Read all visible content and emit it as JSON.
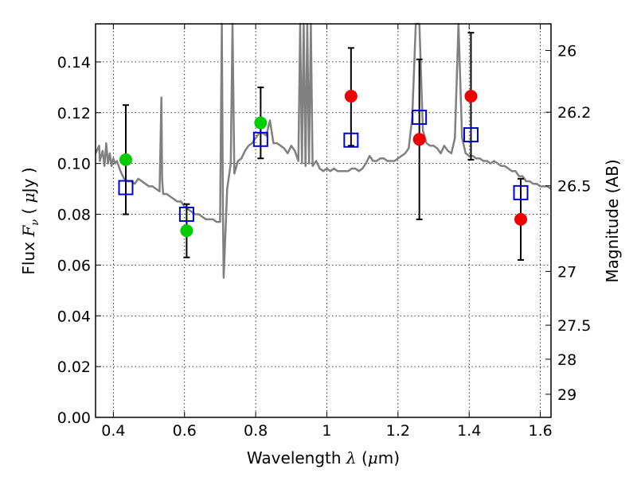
{
  "chart_data": {
    "type": "scatter",
    "xlabel": "Wavelength  λ (μm)",
    "ylabel": "Flux  F_ν  ( μJy )",
    "ylabel_right": "Magnitude (AB)",
    "xlim": [
      0.35,
      1.63
    ],
    "ylim": [
      0.0,
      0.155
    ],
    "grid": true,
    "x_ticks": [
      0.4,
      0.6,
      0.8,
      1.0,
      1.2,
      1.4,
      1.6
    ],
    "x_tick_labels": [
      "0.4",
      "0.6",
      "0.8",
      "1",
      "1.2",
      "1.4",
      "1.6"
    ],
    "y_ticks": [
      0.0,
      0.02,
      0.04,
      0.06,
      0.08,
      0.1,
      0.12,
      0.14
    ],
    "y_tick_labels": [
      "0.00",
      "0.02",
      "0.04",
      "0.06",
      "0.08",
      "0.10",
      "0.12",
      "0.14"
    ],
    "right_ticks": [
      {
        "label": "26",
        "flux": 0.1445
      },
      {
        "label": "26.2",
        "flux": 0.1202
      },
      {
        "label": "26.5",
        "flux": 0.0912
      },
      {
        "label": "27",
        "flux": 0.0575
      },
      {
        "label": "27.5",
        "flux": 0.0363
      },
      {
        "label": "28",
        "flux": 0.0229
      },
      {
        "label": "29",
        "flux": 0.0091
      }
    ],
    "series": [
      {
        "kind": "line",
        "color": "#808080",
        "x": [
          0.35,
          0.36,
          0.362,
          0.37,
          0.375,
          0.38,
          0.385,
          0.39,
          0.395,
          0.4,
          0.405,
          0.41,
          0.42,
          0.43,
          0.44,
          0.45,
          0.46,
          0.47,
          0.48,
          0.49,
          0.5,
          0.51,
          0.52,
          0.53,
          0.535,
          0.537,
          0.54,
          0.55,
          0.56,
          0.57,
          0.58,
          0.59,
          0.6,
          0.61,
          0.62,
          0.63,
          0.64,
          0.65,
          0.66,
          0.67,
          0.68,
          0.69,
          0.7,
          0.705,
          0.708,
          0.71,
          0.72,
          0.73,
          0.735,
          0.74,
          0.75,
          0.76,
          0.77,
          0.78,
          0.79,
          0.8,
          0.81,
          0.82,
          0.83,
          0.84,
          0.85,
          0.86,
          0.87,
          0.88,
          0.89,
          0.9,
          0.91,
          0.92,
          0.925,
          0.93,
          0.935,
          0.94,
          0.945,
          0.95,
          0.955,
          0.96,
          0.97,
          0.98,
          0.99,
          1.0,
          1.01,
          1.02,
          1.03,
          1.04,
          1.05,
          1.06,
          1.07,
          1.08,
          1.09,
          1.1,
          1.11,
          1.12,
          1.13,
          1.14,
          1.15,
          1.16,
          1.17,
          1.18,
          1.19,
          1.2,
          1.21,
          1.22,
          1.23,
          1.24,
          1.25,
          1.255,
          1.26,
          1.27,
          1.28,
          1.29,
          1.3,
          1.31,
          1.32,
          1.33,
          1.34,
          1.35,
          1.36,
          1.37,
          1.38,
          1.39,
          1.4,
          1.41,
          1.42,
          1.43,
          1.44,
          1.45,
          1.46,
          1.47,
          1.48,
          1.49,
          1.5,
          1.51,
          1.52,
          1.53,
          1.54,
          1.55,
          1.56,
          1.57,
          1.58,
          1.59,
          1.6,
          1.61,
          1.62,
          1.63
        ],
        "y": [
          0.104,
          0.107,
          0.101,
          0.105,
          0.099,
          0.108,
          0.1,
          0.104,
          0.099,
          0.102,
          0.1,
          0.101,
          0.097,
          0.094,
          0.093,
          0.093,
          0.092,
          0.094,
          0.093,
          0.092,
          0.091,
          0.091,
          0.09,
          0.089,
          0.126,
          0.094,
          0.088,
          0.088,
          0.087,
          0.086,
          0.085,
          0.085,
          0.083,
          0.082,
          0.081,
          0.08,
          0.08,
          0.079,
          0.078,
          0.078,
          0.078,
          0.077,
          0.077,
          0.155,
          0.08,
          0.055,
          0.09,
          0.1,
          0.155,
          0.096,
          0.101,
          0.102,
          0.105,
          0.107,
          0.108,
          0.11,
          0.112,
          0.112,
          0.111,
          0.117,
          0.108,
          0.108,
          0.107,
          0.106,
          0.104,
          0.107,
          0.105,
          0.101,
          0.155,
          0.1,
          0.155,
          0.099,
          0.155,
          0.1,
          0.155,
          0.099,
          0.101,
          0.098,
          0.097,
          0.098,
          0.097,
          0.098,
          0.097,
          0.097,
          0.097,
          0.097,
          0.098,
          0.098,
          0.097,
          0.098,
          0.1,
          0.103,
          0.101,
          0.101,
          0.102,
          0.102,
          0.101,
          0.101,
          0.101,
          0.102,
          0.103,
          0.104,
          0.106,
          0.118,
          0.155,
          0.155,
          0.155,
          0.113,
          0.108,
          0.107,
          0.107,
          0.106,
          0.104,
          0.107,
          0.105,
          0.104,
          0.11,
          0.155,
          0.11,
          0.104,
          0.103,
          0.103,
          0.102,
          0.102,
          0.101,
          0.101,
          0.1,
          0.101,
          0.1,
          0.099,
          0.099,
          0.098,
          0.097,
          0.097,
          0.095,
          0.095,
          0.093,
          0.093,
          0.092,
          0.092,
          0.091,
          0.091,
          0.091,
          0.09
        ]
      },
      {
        "kind": "open-square",
        "color": "#0000cc",
        "x": [
          0.435,
          0.606,
          0.814,
          1.068,
          1.26,
          1.405,
          1.545
        ],
        "y": [
          0.0905,
          0.08,
          0.1095,
          0.1092,
          0.1182,
          0.1113,
          0.0885
        ]
      },
      {
        "kind": "filled-circle",
        "color": "#00cc00",
        "x": [
          0.435,
          0.606,
          0.814
        ],
        "y": [
          0.1015,
          0.0735,
          0.116
        ]
      },
      {
        "kind": "filled-circle",
        "color": "#ee0000",
        "x": [
          1.068,
          1.26,
          1.405,
          1.545
        ],
        "y": [
          0.1265,
          0.1095,
          0.1265,
          0.078
        ]
      },
      {
        "kind": "errorbar",
        "color": "#000000",
        "x": [
          0.435,
          0.606,
          0.814,
          1.068,
          1.26,
          1.405,
          1.545
        ],
        "low": [
          0.08,
          0.063,
          0.102,
          0.107,
          0.078,
          0.1015,
          0.062
        ],
        "high": [
          0.123,
          0.084,
          0.13,
          0.1455,
          0.141,
          0.1515,
          0.094
        ]
      }
    ]
  }
}
